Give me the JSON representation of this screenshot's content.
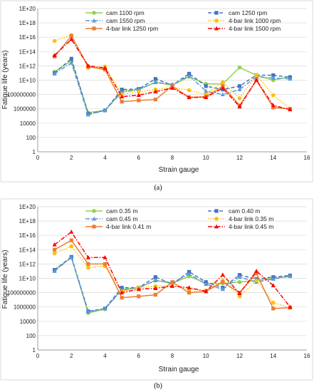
{
  "chart_data": [
    {
      "type": "line",
      "panel_label": "(a)",
      "xlabel": "Strain gauge",
      "ylabel": "Fatigue life (years)",
      "xlim": [
        0,
        16
      ],
      "xticks": [
        "0",
        "2",
        "4",
        "6",
        "8",
        "10",
        "12",
        "14",
        "16"
      ],
      "yscale": "log",
      "ylim": [
        1,
        1e+20
      ],
      "yticks": [
        "1",
        "100",
        "10000",
        "1000000",
        "100000000",
        "1E+10",
        "1E+12",
        "1E+14",
        "1E+16",
        "1E+18",
        "1E+20"
      ],
      "grid": "horizontal",
      "legend_position": "top",
      "x": [
        1,
        2,
        3,
        4,
        5,
        6,
        7,
        8,
        9,
        10,
        11,
        12,
        13,
        14,
        15
      ],
      "series": [
        {
          "name": "cam 1100 rpm",
          "color": "#92d050",
          "dash": "solid",
          "marker": "circle",
          "values": [
            150000000000.0,
            5000000000000.0,
            300000.0,
            600000.0,
            300000000.0,
            500000000.0,
            5000000000.0,
            2000000000.0,
            30000000000.0,
            3000000000.0,
            3000000000.0,
            600000000000.0,
            50000000000.0,
            10000000000.0,
            30000000000.0
          ]
        },
        {
          "name": "cam 1250 rpm",
          "color": "#4472c4",
          "dash": "dash",
          "marker": "square",
          "values": [
            100000000000.0,
            10000000000000.0,
            200000.0,
            600000.0,
            500000000.0,
            600000000.0,
            15000000000.0,
            2000000000.0,
            80000000000.0,
            1500000000.0,
            500000000.0,
            1500000000.0,
            50000000000.0,
            50000000000.0,
            25000000000.0
          ]
        },
        {
          "name": "cam 1550 rpm",
          "color": "#5b9bd5",
          "dash": "dashdot",
          "marker": "triangle",
          "values": [
            80000000000.0,
            2500000000000.0,
            150000.0,
            600000.0,
            200000000.0,
            500000000.0,
            5000000000.0,
            2500000000.0,
            40000000000.0,
            300000000.0,
            100000000.0,
            500000000.0,
            30000000000.0,
            20000000000.0,
            15000000000.0
          ]
        },
        {
          "name": "4-bar link 1000 rpm",
          "color": "#ffc000",
          "dash": "dot",
          "marker": "circle",
          "values": [
            3000000000000000.0,
            2e+16,
            500000000000.0,
            800000000000.0,
            100000000.0,
            250000000.0,
            500000000.0,
            1000000000.0,
            400000000.0,
            100000000.0,
            5000000000.0,
            30000000.0,
            50000000000.0,
            80000000.0,
            1000000.0
          ]
        },
        {
          "name": "4-bar link 1250 rpm",
          "color": "#ed7d31",
          "dash": "solid",
          "marker": "square",
          "values": [
            20000000000000.0,
            1.5e+16,
            800000000000.0,
            300000000000.0,
            10000000.0,
            15000000.0,
            20000000.0,
            1500000000.0,
            40000000.0,
            50000000.0,
            1500000000.0,
            3000000.0,
            10000000000.0,
            1500000.0,
            1000000.0
          ]
        },
        {
          "name": "4-bar link 1500 rpm",
          "color": "#ff0000",
          "dash": "dashdot",
          "marker": "triangle",
          "values": [
            30000000000000.0,
            5000000000000000.0,
            1000000000000.0,
            500000000000.0,
            50000000.0,
            80000000.0,
            250000000.0,
            800000000.0,
            40000000.0,
            40000000.0,
            800000000.0,
            2000000.0,
            10000000000.0,
            3000000.0,
            800000.0
          ]
        }
      ]
    },
    {
      "type": "line",
      "panel_label": "(b)",
      "xlabel": "Strain gauge",
      "ylabel": "Fatigue life (years)",
      "xlim": [
        0,
        16
      ],
      "xticks": [
        "0",
        "2",
        "4",
        "6",
        "8",
        "10",
        "12",
        "14",
        "16"
      ],
      "yscale": "log",
      "ylim": [
        1,
        1e+20
      ],
      "yticks": [
        "1",
        "100",
        "10000",
        "1000000",
        "100000000",
        "1E+10",
        "1E+12",
        "1E+14",
        "1E+16",
        "1E+18",
        "1E+20"
      ],
      "grid": "horizontal",
      "legend_position": "top",
      "x": [
        1,
        2,
        3,
        4,
        5,
        6,
        7,
        8,
        9,
        10,
        11,
        12,
        13,
        14,
        15
      ],
      "series": [
        {
          "name": "cam 0.35 m",
          "color": "#92d050",
          "dash": "solid",
          "marker": "circle",
          "values": [
            150000000000.0,
            8000000000000.0,
            150000.0,
            500000.0,
            300000000.0,
            500000000.0,
            5000000000.0,
            2000000000.0,
            20000000000.0,
            2000000000.0,
            2000000000.0,
            3000000000.0,
            5000000000.0,
            10000000000.0,
            20000000000.0
          ]
        },
        {
          "name": "cam 0.40 m",
          "color": "#4472c4",
          "dash": "dash",
          "marker": "square",
          "values": [
            150000000000.0,
            10000000000000.0,
            250000.0,
            600000.0,
            500000000.0,
            500000000.0,
            15000000000.0,
            1500000000.0,
            80000000000.0,
            3000000000.0,
            500000000.0,
            30000000000.0,
            8000000000.0,
            15000000000.0,
            25000000000.0
          ]
        },
        {
          "name": "cam 0.45 m",
          "color": "#5b9bd5",
          "dash": "dashdot",
          "marker": "triangle",
          "values": [
            100000000000.0,
            8000000000000.0,
            200000.0,
            600000.0,
            200000000.0,
            500000000.0,
            5000000000.0,
            2500000000.0,
            40000000000.0,
            1500000000.0,
            300000000.0,
            15000000000.0,
            3000000000.0,
            8000000000.0,
            20000000000.0
          ]
        },
        {
          "name": "4-bar link 0.35 m",
          "color": "#ffc000",
          "dash": "dot",
          "marker": "circle",
          "values": [
            30000000000000.0,
            300000000000000.0,
            300000000000.0,
            500000000000.0,
            150000000.0,
            500000000.0,
            800000000.0,
            1000000000.0,
            300000000.0,
            200000000.0,
            5000000000.0,
            30000000.0,
            5000000000.0,
            4000000.0,
            800000.0
          ]
        },
        {
          "name": "4-bar link 0.41 m",
          "color": "#ed7d31",
          "dash": "solid",
          "marker": "square",
          "values": [
            100000000000000.0,
            2000000000000000.0,
            1000000000000.0,
            1000000000000.0,
            20000000.0,
            30000000.0,
            50000000.0,
            3000000000.0,
            100000000.0,
            150000000.0,
            3000000000.0,
            100000000.0,
            50000000000.0,
            600000.0,
            800000.0
          ]
        },
        {
          "name": "4-bar link 0.45 m",
          "color": "#ff0000",
          "dash": "dashdot",
          "marker": "triangle",
          "values": [
            500000000000000.0,
            3e+16,
            8000000000000.0,
            8000000000000.0,
            100000000.0,
            300000000.0,
            400000000.0,
            800000000.0,
            500000000.0,
            150000000.0,
            30000000000.0,
            80000000.0,
            100000000000.0,
            1000000000.0,
            1000000.0
          ]
        }
      ]
    }
  ]
}
